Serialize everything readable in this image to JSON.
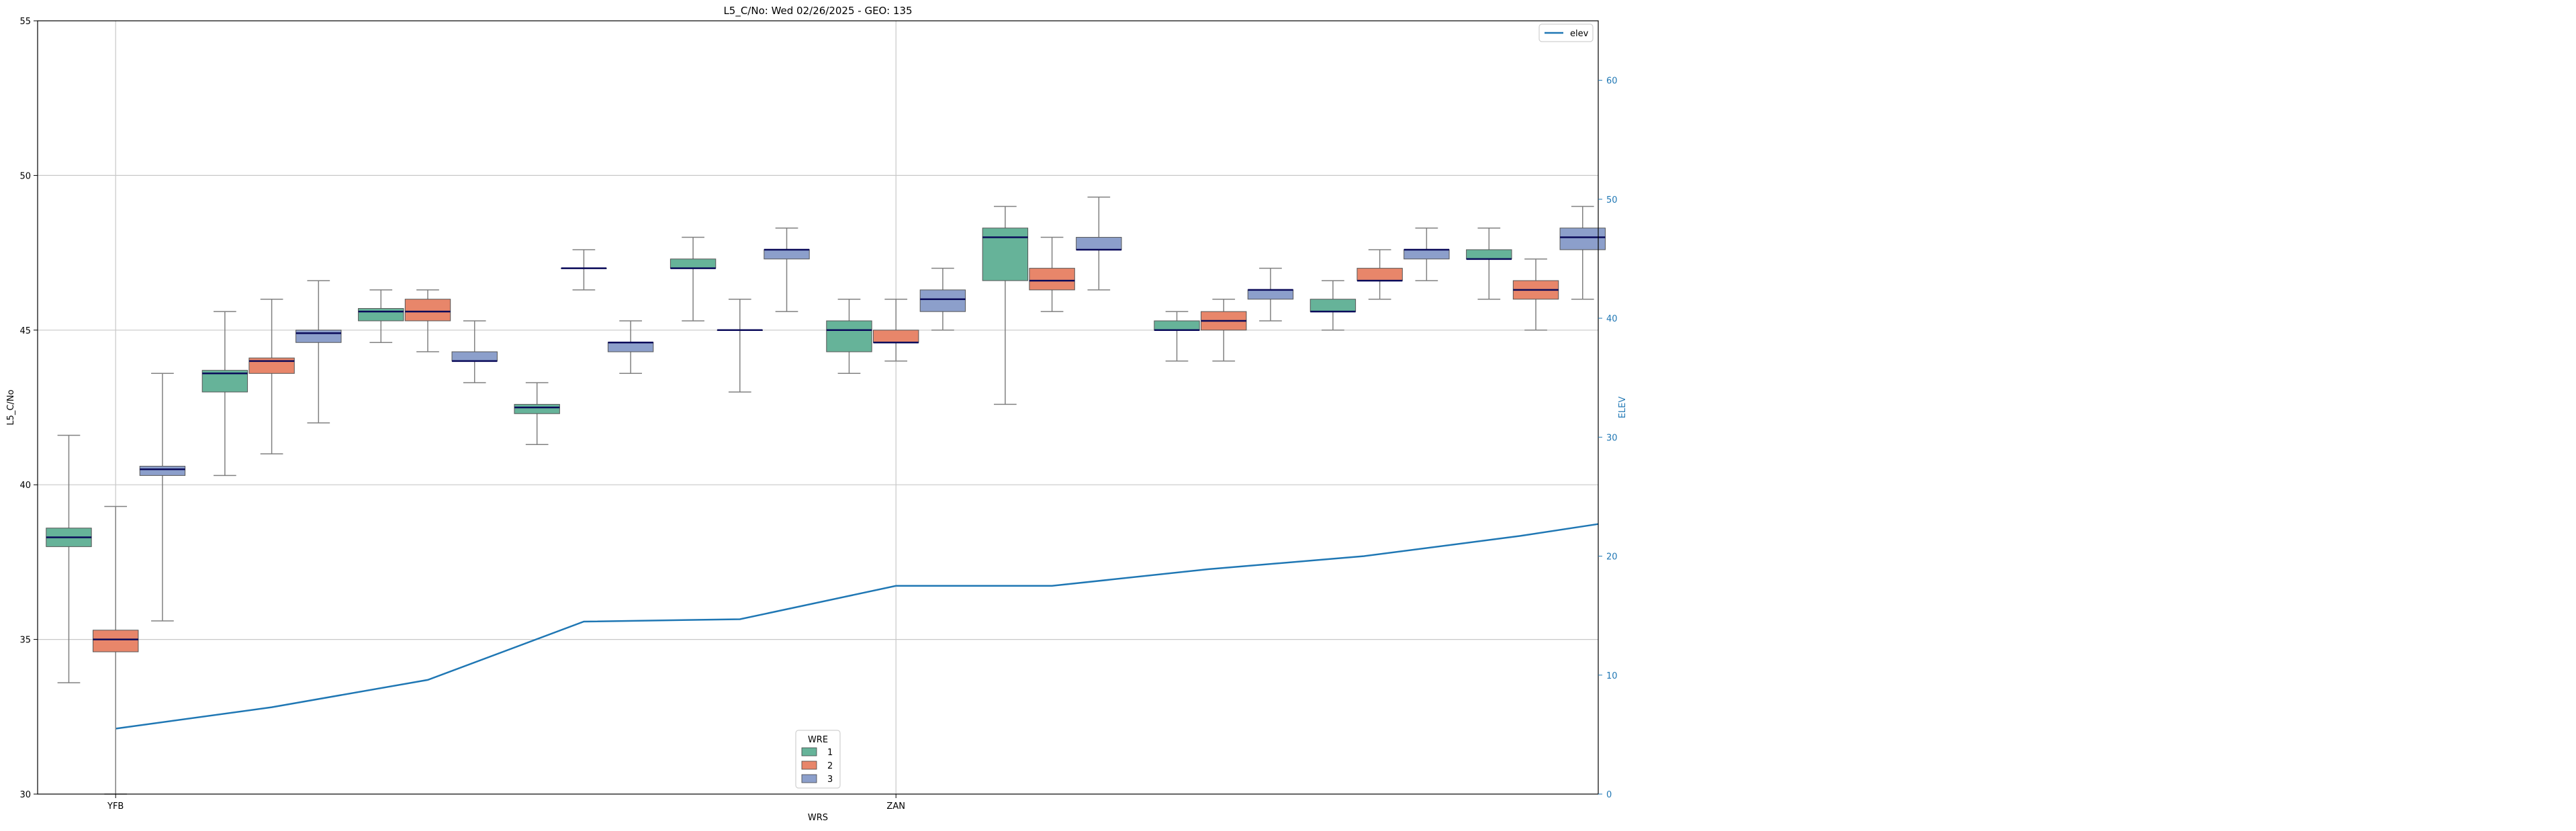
{
  "chart_data": {
    "type": "box",
    "title": "L5_C/No: Wed 02/26/2025 - GEO: 135",
    "xlabel": "WRS",
    "ylabel": "L5_C/No",
    "ylabel_right": "ELEV",
    "ylim": [
      30,
      55
    ],
    "ylim_right": [
      0,
      65
    ],
    "yticks": [
      30,
      35,
      40,
      45,
      50,
      55
    ],
    "yticks_right": [
      0,
      10,
      20,
      30,
      40,
      50,
      60
    ],
    "x_range": [
      0,
      20
    ],
    "xtick_positions": [
      1,
      11
    ],
    "xtick_labels": [
      "YFB",
      "ZAN"
    ],
    "grid": true,
    "colors": {
      "1": "#66b399",
      "2": "#e8866a",
      "3": "#8c9fcb",
      "elev": "#1f77b4",
      "median": "#0a0a5a",
      "whisker": "#808080"
    },
    "legend_hue": {
      "title": "WRE",
      "entries": [
        "1",
        "2",
        "3"
      ],
      "placement": "bottom-center"
    },
    "legend_line": {
      "entries": [
        "elev"
      ],
      "placement": "top-right"
    },
    "boxes": [
      {
        "x": 0.4,
        "wre": "1",
        "whislo": 33.6,
        "q1": 38.0,
        "med": 38.3,
        "q3": 38.6,
        "whishi": 41.6
      },
      {
        "x": 1.0,
        "wre": "2",
        "whislo": 30.0,
        "q1": 34.6,
        "med": 35.0,
        "q3": 35.3,
        "whishi": 39.3
      },
      {
        "x": 1.6,
        "wre": "3",
        "whislo": 35.6,
        "q1": 40.3,
        "med": 40.5,
        "q3": 40.6,
        "whishi": 43.6
      },
      {
        "x": 2.4,
        "wre": "1",
        "whislo": 40.3,
        "q1": 43.0,
        "med": 43.6,
        "q3": 43.7,
        "whishi": 45.6
      },
      {
        "x": 3.0,
        "wre": "2",
        "whislo": 41.0,
        "q1": 43.6,
        "med": 44.0,
        "q3": 44.1,
        "whishi": 46.0
      },
      {
        "x": 3.6,
        "wre": "3",
        "whislo": 42.0,
        "q1": 44.6,
        "med": 44.9,
        "q3": 45.0,
        "whishi": 46.6
      },
      {
        "x": 4.4,
        "wre": "1",
        "whislo": 44.6,
        "q1": 45.3,
        "med": 45.6,
        "q3": 45.7,
        "whishi": 46.3
      },
      {
        "x": 5.0,
        "wre": "2",
        "whislo": 44.3,
        "q1": 45.3,
        "med": 45.6,
        "q3": 46.0,
        "whishi": 46.3
      },
      {
        "x": 5.6,
        "wre": "3",
        "whislo": 43.3,
        "q1": 44.0,
        "med": 44.0,
        "q3": 44.3,
        "whishi": 45.3
      },
      {
        "x": 6.4,
        "wre": "1",
        "whislo": 41.3,
        "q1": 42.3,
        "med": 42.5,
        "q3": 42.6,
        "whishi": 43.3
      },
      {
        "x": 7.0,
        "wre": "2",
        "whislo": 46.3,
        "q1": 47.0,
        "med": 47.0,
        "q3": 47.0,
        "whishi": 47.6
      },
      {
        "x": 7.6,
        "wre": "3",
        "whislo": 43.6,
        "q1": 44.3,
        "med": 44.6,
        "q3": 44.6,
        "whishi": 45.3
      },
      {
        "x": 8.4,
        "wre": "1",
        "whislo": 45.3,
        "q1": 47.0,
        "med": 47.0,
        "q3": 47.3,
        "whishi": 48.0
      },
      {
        "x": 9.0,
        "wre": "2",
        "whislo": 43.0,
        "q1": 45.0,
        "med": 45.0,
        "q3": 45.0,
        "whishi": 46.0
      },
      {
        "x": 9.6,
        "wre": "3",
        "whislo": 45.6,
        "q1": 47.3,
        "med": 47.6,
        "q3": 47.6,
        "whishi": 48.3
      },
      {
        "x": 10.4,
        "wre": "1",
        "whislo": 43.6,
        "q1": 44.3,
        "med": 45.0,
        "q3": 45.3,
        "whishi": 46.0
      },
      {
        "x": 11.0,
        "wre": "2",
        "whislo": 44.0,
        "q1": 44.6,
        "med": 44.6,
        "q3": 45.0,
        "whishi": 46.0
      },
      {
        "x": 11.6,
        "wre": "3",
        "whislo": 45.0,
        "q1": 45.6,
        "med": 46.0,
        "q3": 46.3,
        "whishi": 47.0
      },
      {
        "x": 12.4,
        "wre": "1",
        "whislo": 42.6,
        "q1": 46.6,
        "med": 48.0,
        "q3": 48.3,
        "whishi": 49.0
      },
      {
        "x": 13.0,
        "wre": "2",
        "whislo": 45.6,
        "q1": 46.3,
        "med": 46.6,
        "q3": 47.0,
        "whishi": 48.0
      },
      {
        "x": 13.6,
        "wre": "3",
        "whislo": 46.3,
        "q1": 47.6,
        "med": 47.6,
        "q3": 48.0,
        "whishi": 49.3
      },
      {
        "x": 14.6,
        "wre": "1",
        "whislo": 44.0,
        "q1": 45.0,
        "med": 45.0,
        "q3": 45.3,
        "whishi": 45.6
      },
      {
        "x": 15.2,
        "wre": "2",
        "whislo": 44.0,
        "q1": 45.0,
        "med": 45.3,
        "q3": 45.6,
        "whishi": 46.0
      },
      {
        "x": 15.8,
        "wre": "3",
        "whislo": 45.3,
        "q1": 46.0,
        "med": 46.3,
        "q3": 46.3,
        "whishi": 47.0
      },
      {
        "x": 16.6,
        "wre": "1",
        "whislo": 45.0,
        "q1": 45.6,
        "med": 45.6,
        "q3": 46.0,
        "whishi": 46.6
      },
      {
        "x": 17.2,
        "wre": "2",
        "whislo": 46.0,
        "q1": 46.6,
        "med": 46.6,
        "q3": 47.0,
        "whishi": 47.6
      },
      {
        "x": 17.8,
        "wre": "3",
        "whislo": 46.6,
        "q1": 47.3,
        "med": 47.6,
        "q3": 47.6,
        "whishi": 48.3
      },
      {
        "x": 18.6,
        "wre": "1",
        "whislo": 46.0,
        "q1": 47.3,
        "med": 47.3,
        "q3": 47.6,
        "whishi": 48.3
      },
      {
        "x": 19.2,
        "wre": "2",
        "whislo": 45.0,
        "q1": 46.0,
        "med": 46.3,
        "q3": 46.6,
        "whishi": 47.3
      },
      {
        "x": 19.8,
        "wre": "3",
        "whislo": 46.0,
        "q1": 47.6,
        "med": 48.0,
        "q3": 48.3,
        "whishi": 49.0
      }
    ],
    "elev_series": {
      "name": "elev",
      "x": [
        1,
        3,
        5,
        7,
        9,
        11,
        13,
        15,
        17,
        19,
        20
      ],
      "values": [
        5.5,
        7.3,
        9.6,
        14.5,
        14.7,
        17.5,
        17.5,
        18.9,
        20.0,
        21.7,
        22.7
      ]
    }
  }
}
